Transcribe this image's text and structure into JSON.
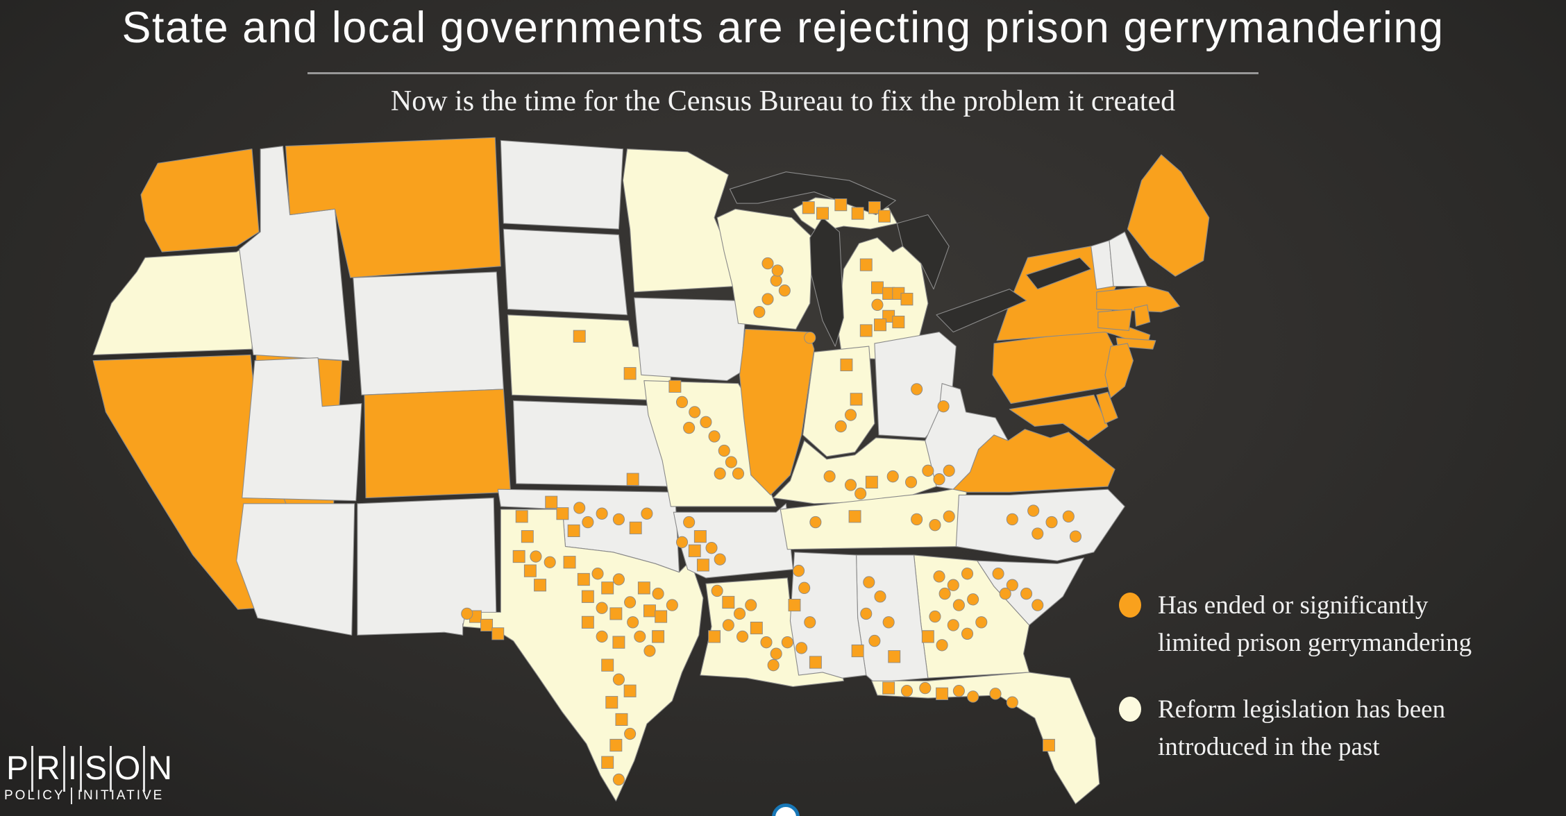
{
  "title": "State and local governments are rejecting prison gerrymandering",
  "subtitle": "Now is the time for the Census Bureau to fix the problem it created",
  "legend": {
    "items": [
      {
        "id": "ended",
        "label_line1": "Has ended or significantly",
        "label_line2": "limited prison gerrymandering",
        "color": "#F9A11D"
      },
      {
        "id": "introduced",
        "label_line1": "Reform legislation has been",
        "label_line2": "introduced in the past",
        "color": "#FCFADF"
      }
    ]
  },
  "logo": {
    "line1": "PRISON",
    "line2": "POLICY INITIATIVE"
  },
  "map": {
    "colors": {
      "ended": "#F9A11D",
      "introduced": "#FBF9D6",
      "none": "#EEEEEC",
      "border": "#8A8A8A",
      "water": "#2F2E2C",
      "dot_fill": "#F9A11D",
      "dot_stroke": "#8A8A8A"
    },
    "state_status": {
      "WA": "ended",
      "MT": "ended",
      "CA": "ended",
      "NV": "ended",
      "CO": "ended",
      "IL": "ended",
      "ME": "ended",
      "MA": "ended",
      "RI": "ended",
      "CT": "ended",
      "NY": "ended",
      "NJ": "ended",
      "PA": "ended",
      "DE": "ended",
      "MD": "ended",
      "VA": "ended",
      "OR": "introduced",
      "NE": "introduced",
      "MN": "introduced",
      "WI": "introduced",
      "MI": "introduced",
      "IN": "introduced",
      "MO": "introduced",
      "KY": "introduced",
      "TN": "introduced",
      "TX": "introduced",
      "LA": "introduced",
      "GA": "introduced",
      "FL": "introduced",
      "ID": "none",
      "WY": "none",
      "UT": "none",
      "AZ": "none",
      "NM": "none",
      "ND": "none",
      "SD": "none",
      "KS": "none",
      "IA": "none",
      "OK": "none",
      "AR": "none",
      "MS": "none",
      "AL": "none",
      "SC": "none",
      "NC": "none",
      "OH": "none",
      "WV": "none",
      "VT": "none",
      "NH": "none"
    },
    "local_dots": [
      [
        527,
        92,
        "c"
      ],
      [
        533,
        104,
        "c"
      ],
      [
        539,
        111,
        "c"
      ],
      [
        527,
        117,
        "c"
      ],
      [
        521,
        126,
        "c"
      ],
      [
        534,
        97,
        "c"
      ],
      [
        556,
        53,
        "s"
      ],
      [
        566,
        57,
        "s"
      ],
      [
        579,
        51,
        "s"
      ],
      [
        591,
        57,
        "s"
      ],
      [
        603,
        53,
        "s"
      ],
      [
        610,
        59,
        "s"
      ],
      [
        597,
        93,
        "s"
      ],
      [
        605,
        109,
        "s"
      ],
      [
        613,
        113,
        "s"
      ],
      [
        620,
        113,
        "s"
      ],
      [
        626,
        117,
        "s"
      ],
      [
        605,
        121,
        "c"
      ],
      [
        613,
        129,
        "s"
      ],
      [
        620,
        133,
        "s"
      ],
      [
        607,
        135,
        "s"
      ],
      [
        597,
        139,
        "s"
      ],
      [
        557,
        144,
        "c"
      ],
      [
        583,
        163,
        "s"
      ],
      [
        590,
        187,
        "s"
      ],
      [
        586,
        198,
        "c"
      ],
      [
        579,
        206,
        "c"
      ],
      [
        633,
        180,
        "c"
      ],
      [
        652,
        192,
        "c"
      ],
      [
        461,
        178,
        "s"
      ],
      [
        466,
        189,
        "c"
      ],
      [
        475,
        196,
        "c"
      ],
      [
        483,
        203,
        "c"
      ],
      [
        471,
        207,
        "c"
      ],
      [
        489,
        213,
        "c"
      ],
      [
        496,
        223,
        "c"
      ],
      [
        501,
        231,
        "c"
      ],
      [
        506,
        239,
        "c"
      ],
      [
        493,
        239,
        "c"
      ],
      [
        393,
        143,
        "s"
      ],
      [
        429,
        169,
        "s"
      ],
      [
        431,
        243,
        "s"
      ],
      [
        373,
        259,
        "s"
      ],
      [
        381,
        267,
        "s"
      ],
      [
        393,
        263,
        "c"
      ],
      [
        399,
        273,
        "c"
      ],
      [
        409,
        267,
        "c"
      ],
      [
        421,
        271,
        "c"
      ],
      [
        433,
        277,
        "s"
      ],
      [
        441,
        267,
        "c"
      ],
      [
        389,
        279,
        "s"
      ],
      [
        571,
        241,
        "c"
      ],
      [
        586,
        247,
        "c"
      ],
      [
        601,
        245,
        "s"
      ],
      [
        616,
        241,
        "c"
      ],
      [
        629,
        245,
        "c"
      ],
      [
        641,
        237,
        "c"
      ],
      [
        649,
        243,
        "c"
      ],
      [
        656,
        237,
        "c"
      ],
      [
        593,
        253,
        "c"
      ],
      [
        561,
        273,
        "c"
      ],
      [
        589,
        269,
        "s"
      ],
      [
        633,
        271,
        "c"
      ],
      [
        646,
        275,
        "c"
      ],
      [
        656,
        269,
        "c"
      ],
      [
        471,
        273,
        "c"
      ],
      [
        479,
        283,
        "s"
      ],
      [
        487,
        291,
        "c"
      ],
      [
        475,
        293,
        "s"
      ],
      [
        493,
        299,
        "c"
      ],
      [
        466,
        287,
        "c"
      ],
      [
        481,
        303,
        "s"
      ],
      [
        549,
        307,
        "c"
      ],
      [
        553,
        319,
        "c"
      ],
      [
        546,
        331,
        "s"
      ],
      [
        557,
        343,
        "c"
      ],
      [
        551,
        361,
        "c"
      ],
      [
        561,
        371,
        "s"
      ],
      [
        599,
        315,
        "c"
      ],
      [
        607,
        325,
        "c"
      ],
      [
        597,
        337,
        "c"
      ],
      [
        613,
        343,
        "c"
      ],
      [
        603,
        356,
        "c"
      ],
      [
        591,
        363,
        "s"
      ],
      [
        617,
        367,
        "s"
      ],
      [
        649,
        311,
        "c"
      ],
      [
        659,
        317,
        "c"
      ],
      [
        669,
        309,
        "c"
      ],
      [
        653,
        323,
        "c"
      ],
      [
        663,
        331,
        "c"
      ],
      [
        673,
        327,
        "c"
      ],
      [
        646,
        339,
        "c"
      ],
      [
        659,
        345,
        "c"
      ],
      [
        669,
        351,
        "c"
      ],
      [
        679,
        343,
        "c"
      ],
      [
        641,
        353,
        "s"
      ],
      [
        651,
        359,
        "c"
      ],
      [
        691,
        309,
        "c"
      ],
      [
        701,
        317,
        "c"
      ],
      [
        711,
        323,
        "c"
      ],
      [
        719,
        331,
        "c"
      ],
      [
        696,
        323,
        "c"
      ],
      [
        701,
        271,
        "c"
      ],
      [
        716,
        265,
        "c"
      ],
      [
        729,
        273,
        "c"
      ],
      [
        741,
        269,
        "c"
      ],
      [
        719,
        281,
        "c"
      ],
      [
        746,
        283,
        "c"
      ],
      [
        613,
        389,
        "s"
      ],
      [
        626,
        391,
        "c"
      ],
      [
        639,
        389,
        "c"
      ],
      [
        651,
        393,
        "s"
      ],
      [
        663,
        391,
        "c"
      ],
      [
        673,
        395,
        "c"
      ],
      [
        689,
        393,
        "c"
      ],
      [
        701,
        399,
        "c"
      ],
      [
        727,
        429,
        "s"
      ],
      [
        491,
        321,
        "c"
      ],
      [
        499,
        329,
        "s"
      ],
      [
        507,
        337,
        "c"
      ],
      [
        515,
        331,
        "c"
      ],
      [
        499,
        345,
        "c"
      ],
      [
        509,
        353,
        "c"
      ],
      [
        519,
        347,
        "s"
      ],
      [
        526,
        357,
        "c"
      ],
      [
        533,
        365,
        "c"
      ],
      [
        541,
        357,
        "c"
      ],
      [
        489,
        353,
        "s"
      ],
      [
        531,
        373,
        "c"
      ],
      [
        352,
        269,
        "s"
      ],
      [
        356,
        283,
        "s"
      ],
      [
        350,
        297,
        "s"
      ],
      [
        358,
        307,
        "s"
      ],
      [
        365,
        317,
        "s"
      ],
      [
        372,
        301,
        "c"
      ],
      [
        362,
        297,
        "c"
      ],
      [
        319,
        339,
        "s"
      ],
      [
        327,
        345,
        "s"
      ],
      [
        335,
        351,
        "s"
      ],
      [
        386,
        301,
        "s"
      ],
      [
        396,
        313,
        "s"
      ],
      [
        406,
        309,
        "c"
      ],
      [
        413,
        319,
        "s"
      ],
      [
        421,
        313,
        "c"
      ],
      [
        399,
        325,
        "s"
      ],
      [
        409,
        333,
        "c"
      ],
      [
        419,
        337,
        "s"
      ],
      [
        429,
        329,
        "c"
      ],
      [
        439,
        319,
        "s"
      ],
      [
        449,
        323,
        "c"
      ],
      [
        443,
        335,
        "s"
      ],
      [
        431,
        343,
        "c"
      ],
      [
        451,
        339,
        "s"
      ],
      [
        459,
        331,
        "c"
      ],
      [
        399,
        343,
        "s"
      ],
      [
        409,
        353,
        "c"
      ],
      [
        421,
        357,
        "s"
      ],
      [
        436,
        353,
        "c"
      ],
      [
        449,
        353,
        "s"
      ],
      [
        443,
        363,
        "c"
      ],
      [
        413,
        373,
        "s"
      ],
      [
        421,
        383,
        "c"
      ],
      [
        429,
        391,
        "s"
      ],
      [
        416,
        399,
        "s"
      ],
      [
        423,
        411,
        "s"
      ],
      [
        429,
        421,
        "c"
      ],
      [
        419,
        429,
        "s"
      ],
      [
        413,
        441,
        "s"
      ],
      [
        421,
        453,
        "c"
      ],
      [
        313,
        337,
        "c"
      ]
    ]
  }
}
